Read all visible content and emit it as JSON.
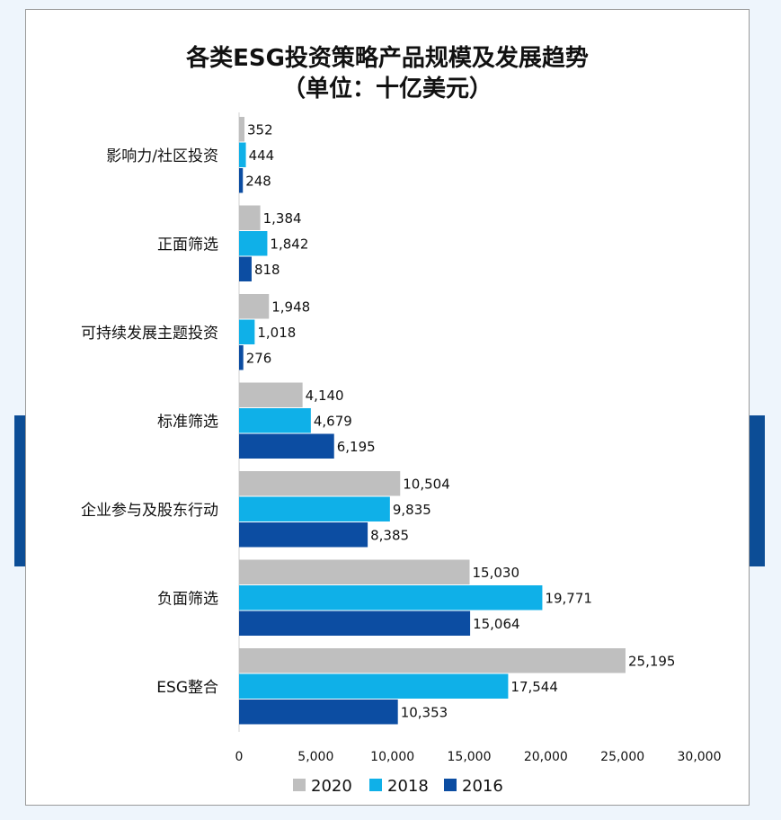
{
  "chart_data": {
    "type": "bar",
    "orientation": "horizontal",
    "title": "各类ESG投资策略产品规模及发展趋势",
    "subtitle": "（单位：十亿美元）",
    "categories": [
      "影响力/社区投资",
      "正面筛选",
      "可持续发展主题投资",
      "标准筛选",
      "企业参与及股东行动",
      "负面筛选",
      "ESG整合"
    ],
    "series": [
      {
        "name": "2020",
        "color": "#bfbfbf",
        "values": [
          352,
          1384,
          1948,
          4140,
          10504,
          15030,
          25195
        ],
        "labels": [
          "352",
          "1,384",
          "1,948",
          "4,140",
          "10,504",
          "15,030",
          "25,195"
        ]
      },
      {
        "name": "2018",
        "color": "#0fb0e8",
        "values": [
          444,
          1842,
          1018,
          4679,
          9835,
          19771,
          17544
        ],
        "labels": [
          "444",
          "1,842",
          "1,018",
          "4,679",
          "9,835",
          "19,771",
          "17,544"
        ]
      },
      {
        "name": "2016",
        "color": "#0c4da2",
        "values": [
          248,
          818,
          276,
          6195,
          8385,
          15064,
          10353
        ],
        "labels": [
          "248",
          "818",
          "276",
          "6,195",
          "8,385",
          "15,064",
          "10,353"
        ]
      }
    ],
    "xlim": [
      0,
      30000
    ],
    "xticks": [
      0,
      5000,
      10000,
      15000,
      20000,
      25000,
      30000
    ],
    "xtick_labels": [
      "0",
      "5,000",
      "10,000",
      "15,000",
      "20,000",
      "25,000",
      "30,000"
    ],
    "grid": false,
    "legend": "bottom"
  }
}
